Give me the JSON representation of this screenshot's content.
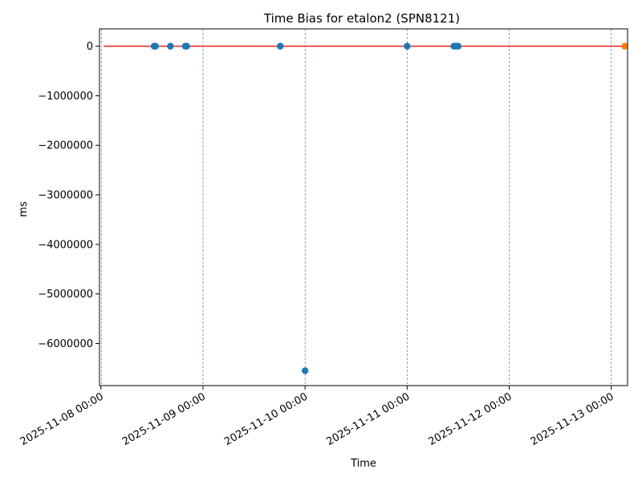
{
  "chart_data": {
    "type": "scatter",
    "title": "Time Bias for etalon2 (SPN8121)",
    "xlabel": "Time",
    "ylabel": "ms",
    "xlim": [
      "2025-11-07T23:40",
      "2025-11-13T03:50"
    ],
    "ylim": [
      -6850000,
      350000
    ],
    "x_ticks": [
      "2025-11-08 00:00",
      "2025-11-09 00:00",
      "2025-11-10 00:00",
      "2025-11-11 00:00",
      "2025-11-12 00:00",
      "2025-11-13 00:00"
    ],
    "y_ticks": [
      0,
      -1000000,
      -2000000,
      -3000000,
      -4000000,
      -5000000,
      -6000000
    ],
    "y_tick_labels": [
      "0",
      "−1000000",
      "−2000000",
      "−3000000",
      "−4000000",
      "−5000000",
      "−6000000"
    ],
    "reference_line": {
      "y": 0,
      "color": "#e8251f"
    },
    "vertical_grid_lines": [
      "2025-11-08T00:10",
      "2025-11-09T00:00",
      "2025-11-10T00:00",
      "2025-11-11T00:00",
      "2025-11-12T00:00",
      "2025-11-13T00:00"
    ],
    "series": [
      {
        "color": "#1f77b4",
        "points": [
          {
            "x": "2025-11-08T12:30",
            "y": 0
          },
          {
            "x": "2025-11-08T12:40",
            "y": 0
          },
          {
            "x": "2025-11-08T12:50",
            "y": 0
          },
          {
            "x": "2025-11-08T16:20",
            "y": 0
          },
          {
            "x": "2025-11-08T19:50",
            "y": 0
          },
          {
            "x": "2025-11-08T20:10",
            "y": 0
          },
          {
            "x": "2025-11-09T18:10",
            "y": 0
          },
          {
            "x": "2025-11-10T00:00",
            "y": -6550000
          },
          {
            "x": "2025-11-11T00:00",
            "y": 0
          },
          {
            "x": "2025-11-11T11:00",
            "y": 0
          },
          {
            "x": "2025-11-11T11:30",
            "y": 0
          },
          {
            "x": "2025-11-11T12:00",
            "y": 0
          }
        ]
      },
      {
        "color": "#ff7f0e",
        "points": [
          {
            "x": "2025-11-13T03:10",
            "y": 0
          }
        ]
      }
    ],
    "grid": "x-only dashed"
  }
}
